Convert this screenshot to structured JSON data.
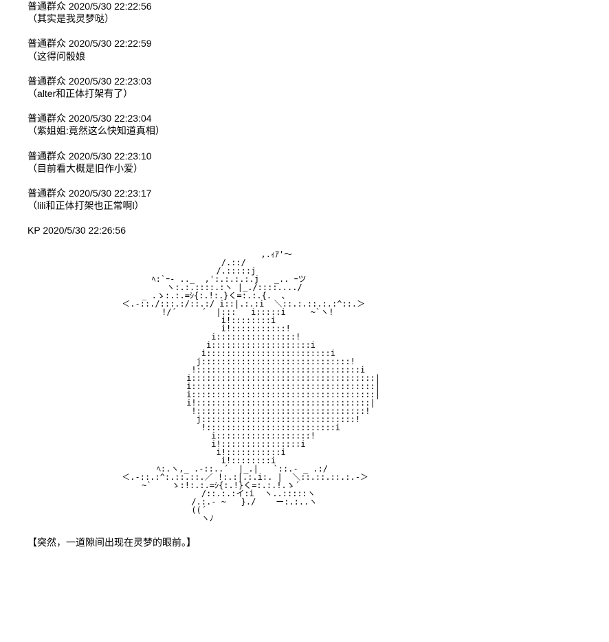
{
  "messages": [
    {
      "sender": "普通群众",
      "timestamp": "2020/5/30 22:22:56",
      "body": "（其实是我灵梦哒）"
    },
    {
      "sender": "普通群众",
      "timestamp": "2020/5/30 22:22:59",
      "body": "（这得问骰娘"
    },
    {
      "sender": "普通群众",
      "timestamp": "2020/5/30 22:23:03",
      "body": "（alter和正体打架有了）"
    },
    {
      "sender": "普通群众",
      "timestamp": "2020/5/30 22:23:04",
      "body": "（紫姐姐:竟然这么快知道真相）"
    },
    {
      "sender": "普通群众",
      "timestamp": "2020/5/30 22:23:10",
      "body": "（目前看大概是旧作小爱）"
    },
    {
      "sender": "普通群众",
      "timestamp": "2020/5/30 22:23:17",
      "body": "（lili和正体打架也正常啊l）"
    },
    {
      "sender": "KP",
      "timestamp": "2020/5/30 22:26:56",
      "body": ""
    }
  ],
  "ascii_art": "                                               ,.ｨｱ'～\n                                       /.::/\n                                      /.:::::j\n                         ﾍ:`ｰ- .._  ,':.:.:.:.j   _.. ｰツ\n                            ヽ:.:.::::.:ヽ |_./::::..../\n                       _ .ゝ:.:.=ｼ{:.!:.}く=:.:.{.  、\n                   ＜.-::./:::.:/::.:/ i::|.:.:i  ＼::.:.::.:.:^::.＞\n                           !/´     ´  |:::   i:::::i     ~`ヽ!\n                                       i!::::::::i\n                                       i!:::::::::::!\n                                     i::::::::::::::::!\n                                    i::::::::::::::::::::i\n                                   i:::::::::::::::::::::::::i\n                                  j::::::::::::::::::::::::::::::!\n                                 !:::::::::::::::::::::::::::::::::i\n                                i:::::::::::::::::::::::::::::::::::::|\n                                i:::::::::::::::::::::::::::::::::::::|\n                                i:::::::::::::::::::::::::::::::::::::|\n                                i!:::::::::::::::::::::::::::::::::::|\n                                 !::::::::::::::::::::::::::::::::::!\n                                  j:::::::::::::::::::::::::::::::!\n                                   !::::::::::::::::::::::::::i\n                                     i:::::::::::::::::::!\n                                     i!::::::::::::::::i\n                                      i!:::::::::::i\n                                       i!::::::::i\n                          ﾍ:.ヽ,_ .-::..´  |_.|   `::.‐ _ .:/\n                   ＜.-::.:^:.::.::.／ !:.:|.:.i:. |  ＼::.::.::.:.-＞\n                       ~`    ゝ:!:.:.=ｼ{:.!}く=:.:.!.ゝ´\n                                   /::.:.:イ:i  ヽ..:::::ヽ\n                                 /.:.- ~   }./    ー:.:..ヽ\n                                 ((´\n                                   ヽﾉ",
  "narrative": "【突然，一道隙间出现在灵梦的眼前。】",
  "styling": {
    "background_color": "#ffffff",
    "text_color": "#000000",
    "font_size_body": 14,
    "font_size_ascii": 12,
    "font_family_body": "SimSun",
    "font_family_ascii": "MS PGothic"
  }
}
